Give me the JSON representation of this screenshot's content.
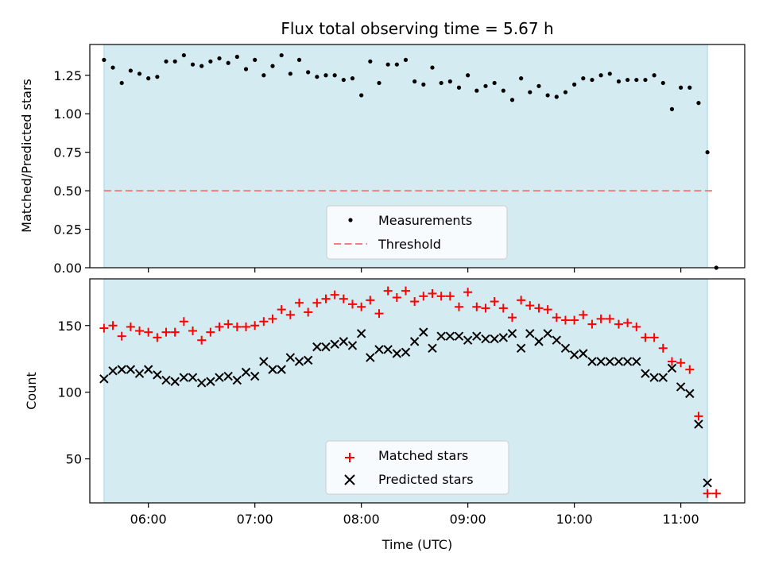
{
  "chart_data": [
    {
      "type": "scatter",
      "title": "Flux total observing time = 5.67 h",
      "ylabel": "Matched/Predicted stars",
      "xlabel": "",
      "xlim": [
        "05:27",
        "11:36"
      ],
      "ylim": [
        0,
        1.45
      ],
      "yticks": [
        0.0,
        0.25,
        0.5,
        0.75,
        1.0,
        1.25
      ],
      "ytick_labels": [
        "0.00",
        "0.25",
        "0.50",
        "0.75",
        "1.00",
        "1.25"
      ],
      "shaded_region": {
        "start": "05:35",
        "end": "11:15",
        "color": "#d4ebf2"
      },
      "threshold": {
        "name": "Threshold",
        "value": 0.5,
        "color": "#f08080",
        "start": "05:35",
        "end": "11:19"
      },
      "series": [
        {
          "name": "Measurements",
          "color": "#000000",
          "x": [
            "05:35",
            "05:40",
            "05:45",
            "05:50",
            "05:55",
            "06:00",
            "06:05",
            "06:10",
            "06:15",
            "06:20",
            "06:25",
            "06:30",
            "06:35",
            "06:40",
            "06:45",
            "06:50",
            "06:55",
            "07:00",
            "07:05",
            "07:10",
            "07:15",
            "07:20",
            "07:25",
            "07:30",
            "07:35",
            "07:40",
            "07:45",
            "07:50",
            "07:55",
            "08:00",
            "08:05",
            "08:10",
            "08:15",
            "08:20",
            "08:25",
            "08:30",
            "08:35",
            "08:40",
            "08:45",
            "08:50",
            "08:55",
            "09:00",
            "09:05",
            "09:10",
            "09:15",
            "09:20",
            "09:25",
            "09:30",
            "09:35",
            "09:40",
            "09:45",
            "09:50",
            "09:55",
            "10:00",
            "10:05",
            "10:10",
            "10:15",
            "10:20",
            "10:25",
            "10:30",
            "10:35",
            "10:40",
            "10:45",
            "10:50",
            "10:55",
            "11:00",
            "11:05",
            "11:10",
            "11:15",
            "11:20"
          ],
          "y": [
            1.35,
            1.3,
            1.2,
            1.28,
            1.26,
            1.23,
            1.24,
            1.34,
            1.34,
            1.38,
            1.32,
            1.31,
            1.34,
            1.36,
            1.33,
            1.37,
            1.29,
            1.35,
            1.25,
            1.31,
            1.38,
            1.26,
            1.35,
            1.27,
            1.24,
            1.25,
            1.25,
            1.22,
            1.23,
            1.12,
            1.34,
            1.2,
            1.32,
            1.32,
            1.35,
            1.21,
            1.19,
            1.3,
            1.2,
            1.21,
            1.17,
            1.25,
            1.15,
            1.18,
            1.2,
            1.15,
            1.09,
            1.23,
            1.14,
            1.18,
            1.12,
            1.11,
            1.14,
            1.19,
            1.23,
            1.22,
            1.25,
            1.26,
            1.21,
            1.22,
            1.22,
            1.22,
            1.25,
            1.2,
            1.03,
            1.17,
            1.17,
            1.07,
            0.75,
            0.0
          ]
        }
      ],
      "legend": {
        "placement": "lower center"
      }
    },
    {
      "type": "scatter",
      "title": "",
      "ylabel": "Count",
      "xlabel": "Time (UTC)",
      "xlim": [
        "05:27",
        "11:36"
      ],
      "ylim": [
        17,
        185
      ],
      "yticks": [
        50,
        100,
        150
      ],
      "ytick_labels": [
        "50",
        "100",
        "150"
      ],
      "xticks": [
        "06:00",
        "07:00",
        "08:00",
        "09:00",
        "10:00",
        "11:00"
      ],
      "xtick_labels": [
        "06:00",
        "07:00",
        "08:00",
        "09:00",
        "10:00",
        "11:00"
      ],
      "shaded_region": {
        "start": "05:35",
        "end": "11:15",
        "color": "#d4ebf2"
      },
      "series": [
        {
          "name": "Matched stars",
          "marker": "plus",
          "color": "#ff0000",
          "x": [
            "05:35",
            "05:40",
            "05:45",
            "05:50",
            "05:55",
            "06:00",
            "06:05",
            "06:10",
            "06:15",
            "06:20",
            "06:25",
            "06:30",
            "06:35",
            "06:40",
            "06:45",
            "06:50",
            "06:55",
            "07:00",
            "07:05",
            "07:10",
            "07:15",
            "07:20",
            "07:25",
            "07:30",
            "07:35",
            "07:40",
            "07:45",
            "07:50",
            "07:55",
            "08:00",
            "08:05",
            "08:10",
            "08:15",
            "08:20",
            "08:25",
            "08:30",
            "08:35",
            "08:40",
            "08:45",
            "08:50",
            "08:55",
            "09:00",
            "09:05",
            "09:10",
            "09:15",
            "09:20",
            "09:25",
            "09:30",
            "09:35",
            "09:40",
            "09:45",
            "09:50",
            "09:55",
            "10:00",
            "10:05",
            "10:10",
            "10:15",
            "10:20",
            "10:25",
            "10:30",
            "10:35",
            "10:40",
            "10:45",
            "10:50",
            "10:55",
            "11:00",
            "11:05",
            "11:10",
            "11:15",
            "11:20"
          ],
          "y": [
            148,
            150,
            142,
            149,
            146,
            145,
            141,
            145,
            145,
            153,
            146,
            139,
            145,
            149,
            151,
            149,
            149,
            150,
            153,
            155,
            162,
            158,
            167,
            160,
            167,
            170,
            173,
            170,
            166,
            164,
            169,
            159,
            176,
            171,
            176,
            168,
            172,
            174,
            172,
            172,
            164,
            175,
            164,
            163,
            168,
            163,
            156,
            169,
            165,
            163,
            162,
            156,
            154,
            154,
            158,
            151,
            155,
            155,
            151,
            152,
            149,
            141,
            141,
            133,
            123,
            122,
            117,
            82,
            24,
            24
          ]
        },
        {
          "name": "Predicted stars",
          "marker": "x",
          "color": "#000000",
          "x": [
            "05:35",
            "05:40",
            "05:45",
            "05:50",
            "05:55",
            "06:00",
            "06:05",
            "06:10",
            "06:15",
            "06:20",
            "06:25",
            "06:30",
            "06:35",
            "06:40",
            "06:45",
            "06:50",
            "06:55",
            "07:00",
            "07:05",
            "07:10",
            "07:15",
            "07:20",
            "07:25",
            "07:30",
            "07:35",
            "07:40",
            "07:45",
            "07:50",
            "07:55",
            "08:00",
            "08:05",
            "08:10",
            "08:15",
            "08:20",
            "08:25",
            "08:30",
            "08:35",
            "08:40",
            "08:45",
            "08:50",
            "08:55",
            "09:00",
            "09:05",
            "09:10",
            "09:15",
            "09:20",
            "09:25",
            "09:30",
            "09:35",
            "09:40",
            "09:45",
            "09:50",
            "09:55",
            "10:00",
            "10:05",
            "10:10",
            "10:15",
            "10:20",
            "10:25",
            "10:30",
            "10:35",
            "10:40",
            "10:45",
            "10:50",
            "10:55",
            "11:00",
            "11:05",
            "11:10",
            "11:15"
          ],
          "y": [
            110,
            116,
            117,
            117,
            114,
            117,
            113,
            109,
            108,
            111,
            111,
            107,
            108,
            111,
            112,
            109,
            115,
            112,
            123,
            117,
            117,
            126,
            123,
            124,
            134,
            134,
            136,
            138,
            135,
            144,
            126,
            132,
            132,
            129,
            130,
            138,
            145,
            133,
            142,
            142,
            142,
            139,
            142,
            140,
            140,
            141,
            144,
            133,
            144,
            138,
            144,
            139,
            133,
            128,
            129,
            123,
            123,
            123,
            123,
            123,
            123,
            114,
            111,
            111,
            118,
            104,
            99,
            76,
            32
          ]
        }
      ],
      "legend": {
        "placement": "lower center"
      }
    }
  ]
}
